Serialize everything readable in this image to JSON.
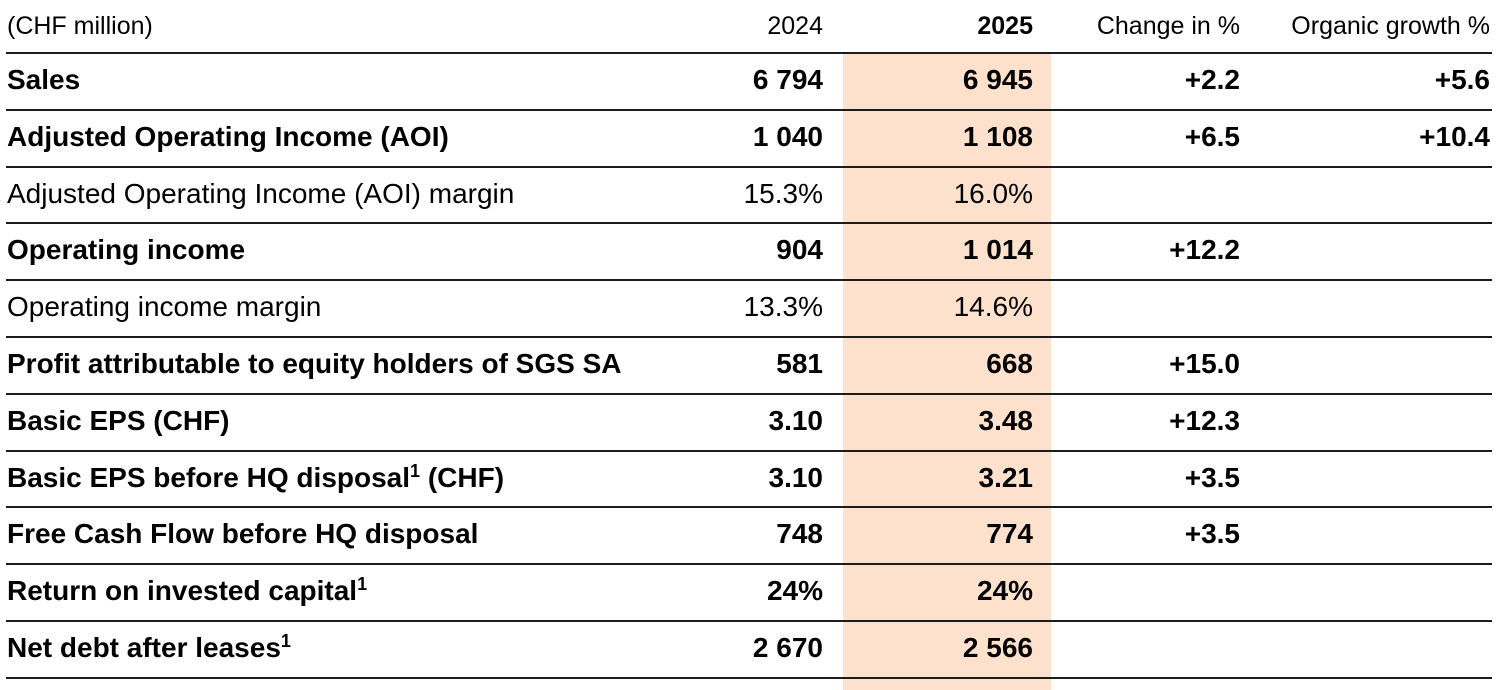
{
  "page": {
    "background_color": "#ffffff",
    "highlight_color": "#fde1cd",
    "rule_color": "#1c1c1c"
  },
  "table": {
    "unit_label": "(CHF million)",
    "columns": [
      {
        "key": "y2024",
        "label": "2024",
        "bold": false
      },
      {
        "key": "y2025",
        "label": "2025",
        "bold": true
      },
      {
        "key": "change",
        "label": "Change in %",
        "bold": false
      },
      {
        "key": "organic",
        "label": "Organic growth %",
        "bold": false
      }
    ],
    "rows": [
      {
        "label": "Sales",
        "sup": "",
        "label_suffix": "",
        "bold": true,
        "y2024": "6 794",
        "y2025": "6 945",
        "change": "+2.2",
        "organic": "+5.6"
      },
      {
        "label": "Adjusted Operating Income (AOI)",
        "sup": "",
        "label_suffix": "",
        "bold": true,
        "y2024": "1 040",
        "y2025": "1 108",
        "change": "+6.5",
        "organic": "+10.4"
      },
      {
        "label": "Adjusted Operating Income (AOI) margin",
        "sup": "",
        "label_suffix": "",
        "bold": false,
        "y2024": "15.3%",
        "y2025": "16.0%",
        "change": "",
        "organic": ""
      },
      {
        "label": "Operating income",
        "sup": "",
        "label_suffix": "",
        "bold": true,
        "y2024": "904",
        "y2025": "1 014",
        "change": "+12.2",
        "organic": ""
      },
      {
        "label": "Operating income margin",
        "sup": "",
        "label_suffix": "",
        "bold": false,
        "y2024": "13.3%",
        "y2025": "14.6%",
        "change": "",
        "organic": ""
      },
      {
        "label": "Profit attributable to equity holders of SGS SA",
        "sup": "",
        "label_suffix": "",
        "bold": true,
        "y2024": "581",
        "y2025": "668",
        "change": "+15.0",
        "organic": ""
      },
      {
        "label": "Basic EPS (CHF)",
        "sup": "",
        "label_suffix": "",
        "bold": true,
        "y2024": "3.10",
        "y2025": "3.48",
        "change": "+12.3",
        "organic": ""
      },
      {
        "label": "Basic EPS before HQ disposal",
        "sup": "1",
        "label_suffix": " (CHF)",
        "bold": true,
        "y2024": "3.10",
        "y2025": "3.21",
        "change": "+3.5",
        "organic": ""
      },
      {
        "label": "Free Cash Flow before HQ disposal",
        "sup": "",
        "label_suffix": "",
        "bold": true,
        "y2024": "748",
        "y2025": "774",
        "change": "+3.5",
        "organic": ""
      },
      {
        "label": "Return on invested capital",
        "sup": "1",
        "label_suffix": "",
        "bold": true,
        "y2024": "24%",
        "y2025": "24%",
        "change": "",
        "organic": ""
      },
      {
        "label": "Net debt after leases",
        "sup": "1",
        "label_suffix": "",
        "bold": true,
        "y2024": "2 670",
        "y2025": "2 566",
        "change": "",
        "organic": ""
      }
    ]
  }
}
